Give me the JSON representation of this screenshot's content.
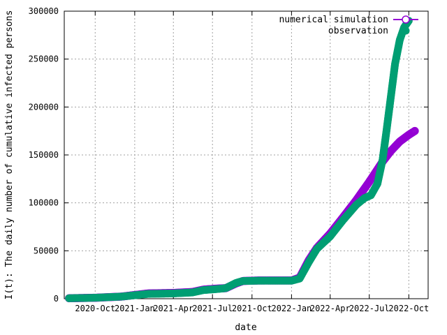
{
  "chart_data": {
    "type": "scatter",
    "xlabel": "date",
    "ylabel": "I(t): The daily number of cumulative infected persons",
    "xlim": [
      "2020-07-21",
      "2022-11-15"
    ],
    "ylim": [
      0,
      300000
    ],
    "x_ticks": [
      {
        "label": "2020-Oct",
        "date": "2020-10-01"
      },
      {
        "label": "2021-Jan",
        "date": "2021-01-01"
      },
      {
        "label": "2021-Apr",
        "date": "2021-04-01"
      },
      {
        "label": "2021-Jul",
        "date": "2021-07-01"
      },
      {
        "label": "2021-Oct",
        "date": "2021-10-01"
      },
      {
        "label": "2022-Jan",
        "date": "2022-01-01"
      },
      {
        "label": "2022-Apr",
        "date": "2022-04-01"
      },
      {
        "label": "2022-Jul",
        "date": "2022-07-01"
      },
      {
        "label": "2022-Oct",
        "date": "2022-10-01"
      }
    ],
    "y_ticks": [
      0,
      50000,
      100000,
      150000,
      200000,
      250000,
      300000
    ],
    "grid": true,
    "legend_position": "top-right",
    "series": [
      {
        "name": "numerical simulation",
        "color": "#9400d3",
        "marker": "open-circle",
        "points": [
          [
            "2020-08-01",
            500
          ],
          [
            "2020-10-01",
            1000
          ],
          [
            "2020-12-01",
            2200
          ],
          [
            "2021-02-01",
            5500
          ],
          [
            "2021-04-01",
            6000
          ],
          [
            "2021-05-15",
            7000
          ],
          [
            "2021-06-10",
            9500
          ],
          [
            "2021-07-10",
            10500
          ],
          [
            "2021-08-01",
            11000
          ],
          [
            "2021-08-25",
            16000
          ],
          [
            "2021-09-10",
            18500
          ],
          [
            "2021-10-15",
            19000
          ],
          [
            "2021-12-01",
            19000
          ],
          [
            "2022-01-01",
            19000
          ],
          [
            "2022-01-20",
            22000
          ],
          [
            "2022-02-10",
            40000
          ],
          [
            "2022-03-01",
            53000
          ],
          [
            "2022-04-01",
            68000
          ],
          [
            "2022-05-01",
            85000
          ],
          [
            "2022-06-01",
            103000
          ],
          [
            "2022-07-01",
            122000
          ],
          [
            "2022-08-01",
            143000
          ],
          [
            "2022-08-20",
            154000
          ],
          [
            "2022-09-10",
            164000
          ],
          [
            "2022-10-01",
            171000
          ],
          [
            "2022-10-15",
            175000
          ]
        ]
      },
      {
        "name": "observation",
        "color": "#009e73",
        "marker": "filled-circle",
        "points": [
          [
            "2020-08-01",
            500
          ],
          [
            "2020-10-01",
            1000
          ],
          [
            "2020-12-01",
            2200
          ],
          [
            "2021-02-01",
            5000
          ],
          [
            "2021-04-01",
            5500
          ],
          [
            "2021-05-15",
            6500
          ],
          [
            "2021-06-10",
            9000
          ],
          [
            "2021-07-10",
            10000
          ],
          [
            "2021-08-01",
            11000
          ],
          [
            "2021-08-25",
            16500
          ],
          [
            "2021-09-10",
            18500
          ],
          [
            "2021-10-15",
            18800
          ],
          [
            "2021-12-01",
            18800
          ],
          [
            "2022-01-01",
            18800
          ],
          [
            "2022-01-20",
            21000
          ],
          [
            "2022-02-10",
            38000
          ],
          [
            "2022-03-01",
            52000
          ],
          [
            "2022-04-01",
            65000
          ],
          [
            "2022-05-01",
            82000
          ],
          [
            "2022-06-01",
            98000
          ],
          [
            "2022-06-20",
            105000
          ],
          [
            "2022-07-05",
            108000
          ],
          [
            "2022-07-20",
            120000
          ],
          [
            "2022-08-01",
            145000
          ],
          [
            "2022-08-10",
            175000
          ],
          [
            "2022-08-20",
            210000
          ],
          [
            "2022-08-30",
            245000
          ],
          [
            "2022-09-10",
            270000
          ],
          [
            "2022-09-20",
            283000
          ],
          [
            "2022-10-01",
            290000
          ]
        ]
      }
    ]
  }
}
